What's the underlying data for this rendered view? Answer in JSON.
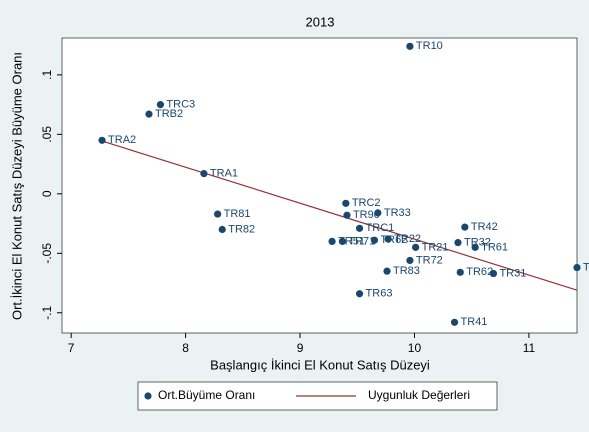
{
  "chart_data": {
    "type": "scatter",
    "title": "2013",
    "xlabel": "Başlangıç İkinci El Konut Satış Düzeyi",
    "ylabel": "Ort.İkinci El Konut Satış Düzeyi Büyüme Oranı",
    "xlim": [
      6.92,
      11.42
    ],
    "ylim": [
      -0.117,
      0.131
    ],
    "xticks": [
      7,
      8,
      9,
      10,
      11
    ],
    "yticks": [
      {
        "value": 0.1,
        "label": ".1"
      },
      {
        "value": 0.05,
        "label": ".05"
      },
      0,
      {
        "value": -0.05,
        "label": "-.05"
      },
      {
        "value": -0.1,
        "label": "-.1"
      }
    ],
    "series": [
      {
        "name": "Ort.Büyüme Oranı",
        "color": "#1a476f",
        "labels": [
          "TR10",
          "TRC3",
          "TRB2",
          "TRA2",
          "TRA1",
          "TR81",
          "TR82",
          "TRC2",
          "TR90",
          "TR33",
          "TRC1",
          "TR51",
          "TR71",
          "TR62",
          "TR22",
          "TR21",
          "TR72",
          "TR83",
          "TR63",
          "TR42",
          "TR32",
          "TR61",
          "TR62",
          "TR31",
          "TR41",
          "TR"
        ],
        "x": [
          9.96,
          7.78,
          7.68,
          7.27,
          8.16,
          8.28,
          8.32,
          9.4,
          9.41,
          9.68,
          9.52,
          9.28,
          9.37,
          9.65,
          9.77,
          10.01,
          9.96,
          9.76,
          9.52,
          10.44,
          10.38,
          10.53,
          10.4,
          10.69,
          10.35,
          11.42
        ],
        "values": [
          0.124,
          0.075,
          0.067,
          0.045,
          0.017,
          -0.017,
          -0.03,
          -0.008,
          -0.018,
          -0.016,
          -0.029,
          -0.04,
          -0.04,
          -0.039,
          -0.038,
          -0.045,
          -0.056,
          -0.065,
          -0.084,
          -0.028,
          -0.041,
          -0.045,
          -0.066,
          -0.067,
          -0.108,
          -0.062
        ]
      }
    ],
    "fit": {
      "name": "Uygunluk Değerleri",
      "color": "#90353b",
      "x": [
        7.25,
        11.42
      ],
      "values": [
        0.045,
        -0.081
      ]
    }
  }
}
